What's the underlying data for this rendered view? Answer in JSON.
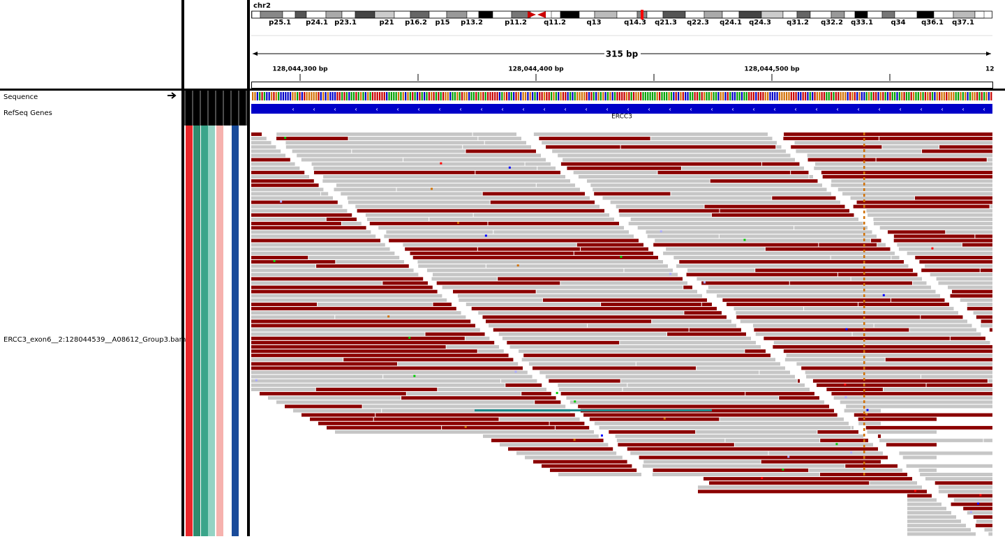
{
  "header": {
    "chromosome": "chr2",
    "bands": [
      "p25.1",
      "p24.1",
      "p23.1",
      "p21",
      "p16.2",
      "p15",
      "p13.2",
      "p11.2",
      "q11.2",
      "q13",
      "q14.3",
      "q21.3",
      "q22.3",
      "q24.1",
      "q24.3",
      "q31.2",
      "q32.2",
      "q33.1",
      "q34",
      "q36.1",
      "q37.1"
    ],
    "span": "315 bp",
    "positions": [
      "128,044,300 bp",
      "128,044,400 bp",
      "128,044,500 bp",
      "12"
    ]
  },
  "tracks": {
    "sequence": "Sequence",
    "genes": "RefSeq Genes",
    "gene_name": "ERCC3",
    "alignment": "ERCC3_exon6__2:128044539__A08612_Group3.bam"
  }
}
